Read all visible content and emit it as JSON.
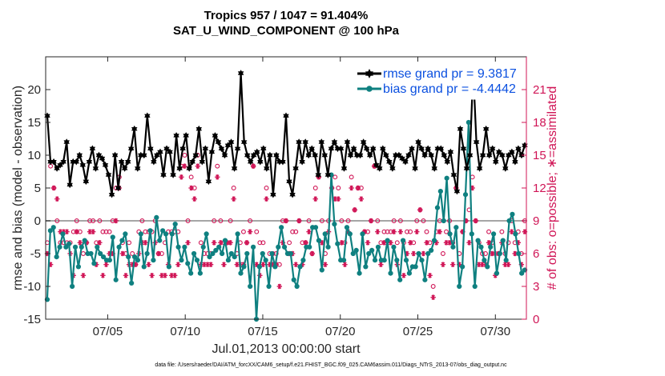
{
  "chart_data": {
    "type": "line",
    "title": "Tropics 957 / 1047 = 91.404%",
    "subtitle": "SAT_U_WIND_COMPONENT @ 100 hPa",
    "xlabel": "Jul.01,2013 00:00:00 start",
    "ylabel": "rmse and bias (model - observation)",
    "y2label": "# of obs: o=possible; ∗=assimilated",
    "x_tick_labels": [
      "07/05",
      "07/10",
      "07/15",
      "07/20",
      "07/25",
      "07/30"
    ],
    "x_tick_days": [
      5,
      10,
      15,
      20,
      25,
      30
    ],
    "xlim": [
      1,
      32
    ],
    "ylim": [
      -15,
      25
    ],
    "y_ticks": [
      -15,
      -10,
      -5,
      0,
      5,
      10,
      15,
      20
    ],
    "y2lim": [
      0,
      24
    ],
    "y2_ticks": [
      0,
      3,
      6,
      9,
      12,
      15,
      18,
      21
    ],
    "zero_line": 0,
    "series": [
      {
        "name": "rmse grand pr = 9.3817",
        "color": "#000000",
        "marker": "hexagram",
        "values": [
          16,
          9,
          9,
          8,
          8.5,
          9,
          12,
          5.5,
          9,
          9,
          10,
          8.5,
          6,
          9,
          11,
          8,
          10,
          9.5,
          8.5,
          7,
          4,
          10,
          5,
          9,
          8,
          9,
          11,
          14,
          8,
          10,
          10,
          16,
          11,
          9,
          10,
          10.5,
          7,
          11,
          10.5,
          7,
          13,
          8,
          11,
          13,
          8,
          9,
          10,
          14,
          9,
          11,
          6,
          10.5,
          13,
          12,
          11,
          10,
          11.5,
          12,
          8,
          11,
          22.5,
          12,
          10,
          9,
          10,
          10.5,
          9,
          11,
          8,
          10,
          4,
          10,
          9,
          9,
          16,
          6,
          4,
          8,
          12,
          9,
          12,
          10,
          11,
          10,
          7,
          12,
          10,
          7,
          11,
          12,
          11,
          11,
          8,
          12,
          10,
          11,
          10,
          10,
          12,
          11,
          10,
          11,
          8.5,
          8,
          11,
          10,
          9,
          8,
          10,
          10,
          9.5,
          9,
          10,
          11,
          8,
          12,
          11,
          10,
          11,
          10,
          8,
          11,
          11,
          10,
          9,
          10.5,
          7,
          4.5,
          14,
          11,
          8,
          10,
          23,
          12,
          8,
          10,
          14,
          10,
          11,
          9,
          10.5,
          10,
          8,
          10,
          10.5,
          9,
          11,
          10,
          11.5
        ]
      },
      {
        "name": "bias grand pr = -4.4442",
        "color": "#0f8080",
        "marker": "circle",
        "values": [
          -12,
          -1.5,
          -1,
          -5.5,
          -4,
          -2,
          -4,
          -3.5,
          -10,
          -4,
          -7,
          -4,
          -3,
          -5,
          -5,
          -6.5,
          -4,
          -5,
          -5.5,
          -6,
          -6,
          -2.5,
          -9,
          -4,
          -3,
          -2,
          -5.5,
          -9.5,
          -5.5,
          -6,
          -2,
          -7,
          -5,
          -1.5,
          -6,
          0.5,
          -3,
          -1.5,
          -2,
          -7,
          -2,
          -0.5,
          -4,
          -6,
          -4,
          -6.5,
          -8,
          -5,
          -6,
          -8,
          -4,
          -2,
          -5.5,
          -5,
          -4.5,
          -4,
          -5,
          -3,
          -6,
          -5,
          -5.5,
          -2,
          -8,
          -7,
          -5,
          -10,
          -4,
          -15,
          -7,
          -5,
          -6,
          -10,
          -5,
          -7,
          -4,
          -1,
          -4,
          -5,
          -5,
          -9,
          -10,
          -7,
          -6,
          -4,
          -4,
          -1,
          -1,
          -3,
          -7.5,
          -2,
          -4,
          7,
          -0.5,
          -3.5,
          -6,
          -6,
          -1,
          -2,
          -5,
          -4.5,
          -8,
          -2,
          -7,
          -5,
          -4.5,
          -6,
          -4,
          -6,
          -6,
          -3,
          -8,
          -4,
          -6,
          -9,
          -3,
          -6,
          -8,
          -7,
          -7,
          -5,
          -6,
          -9,
          -5,
          -4.5,
          -3,
          2,
          4.5,
          0,
          6.5,
          -2,
          -4,
          -1,
          -10,
          -7,
          4,
          15,
          -2,
          -10,
          -3,
          -4,
          -6,
          -7,
          -4,
          -2,
          -8,
          -5,
          -3,
          -6,
          0,
          1,
          -2,
          -5,
          -8,
          -7.5
        ]
      }
    ],
    "y2_series": [
      {
        "name": "possible",
        "marker": "o",
        "color": "#d01556",
        "values": [
          7,
          14,
          12,
          9,
          7,
          7,
          7,
          7,
          8,
          9,
          8,
          6,
          7,
          9,
          9,
          7,
          9,
          8,
          8,
          8,
          9,
          12,
          13,
          7,
          6,
          7,
          6,
          5,
          8,
          9,
          8,
          8,
          8,
          9,
          6,
          6,
          7,
          8,
          8,
          8,
          8,
          14,
          15,
          9,
          13,
          12,
          15,
          7,
          6,
          6,
          6,
          9,
          14,
          9,
          7,
          7,
          9,
          12,
          6,
          7,
          8,
          7,
          9,
          14,
          8,
          7,
          7,
          12,
          6,
          6,
          6,
          5,
          9,
          9,
          7,
          8,
          8,
          9,
          7,
          7,
          9,
          6,
          12,
          13,
          9,
          6,
          9,
          12,
          13,
          12,
          9,
          7,
          9,
          13,
          10,
          12,
          12,
          8,
          8,
          9,
          14,
          9,
          7,
          8,
          8,
          8,
          9,
          7,
          9,
          7,
          8,
          8,
          7,
          9,
          10,
          9,
          8,
          7,
          3,
          8,
          9,
          6,
          8,
          9,
          7,
          12,
          6,
          8,
          9,
          10,
          13,
          9,
          7,
          6,
          6,
          8,
          7,
          6,
          6,
          8,
          6,
          7,
          9,
          7,
          8,
          6,
          9
        ]
      },
      {
        "name": "assimilated",
        "marker": "*",
        "color": "#d01556",
        "values": [
          6,
          5,
          12,
          11,
          8,
          8,
          8,
          6,
          4,
          8,
          7,
          4,
          7,
          8,
          8,
          5,
          7,
          4,
          5,
          6,
          6,
          9,
          12,
          6,
          4,
          5,
          5,
          5,
          6,
          7,
          7,
          5,
          4,
          7,
          6,
          4,
          4,
          5,
          4,
          4,
          5,
          13,
          14,
          7,
          12,
          11,
          14,
          5,
          5,
          5,
          5,
          7,
          13,
          7,
          5,
          7,
          7,
          11,
          5,
          5,
          5,
          7,
          8,
          14,
          5,
          4,
          5,
          11,
          5,
          5,
          5,
          3,
          7,
          9,
          6,
          6,
          5,
          9,
          5,
          7,
          8,
          6,
          11,
          13,
          7,
          5,
          8,
          12,
          11,
          11,
          7,
          5,
          8,
          12,
          10,
          12,
          11,
          8,
          7,
          9,
          14,
          8,
          5,
          7,
          7,
          7,
          8,
          5,
          8,
          4,
          6,
          7,
          6,
          8,
          10,
          6,
          7,
          4,
          2,
          7,
          8,
          5,
          7,
          7,
          5,
          12,
          5,
          8,
          9,
          7,
          12,
          9,
          5,
          5,
          5,
          7,
          6,
          4,
          6,
          7,
          5,
          5,
          8,
          6,
          7,
          5,
          8
        ]
      }
    ],
    "legend_position": "top-right",
    "grid": false
  },
  "footer": {
    "datafile": "data file: /Users/raeder/DAI/ATM_forcXX/CAM6_setup/f.e21.FHIST_BGC.f09_025.CAM6assim.011/Diags_NTrS_2013-07/obs_diag_output.nc"
  }
}
